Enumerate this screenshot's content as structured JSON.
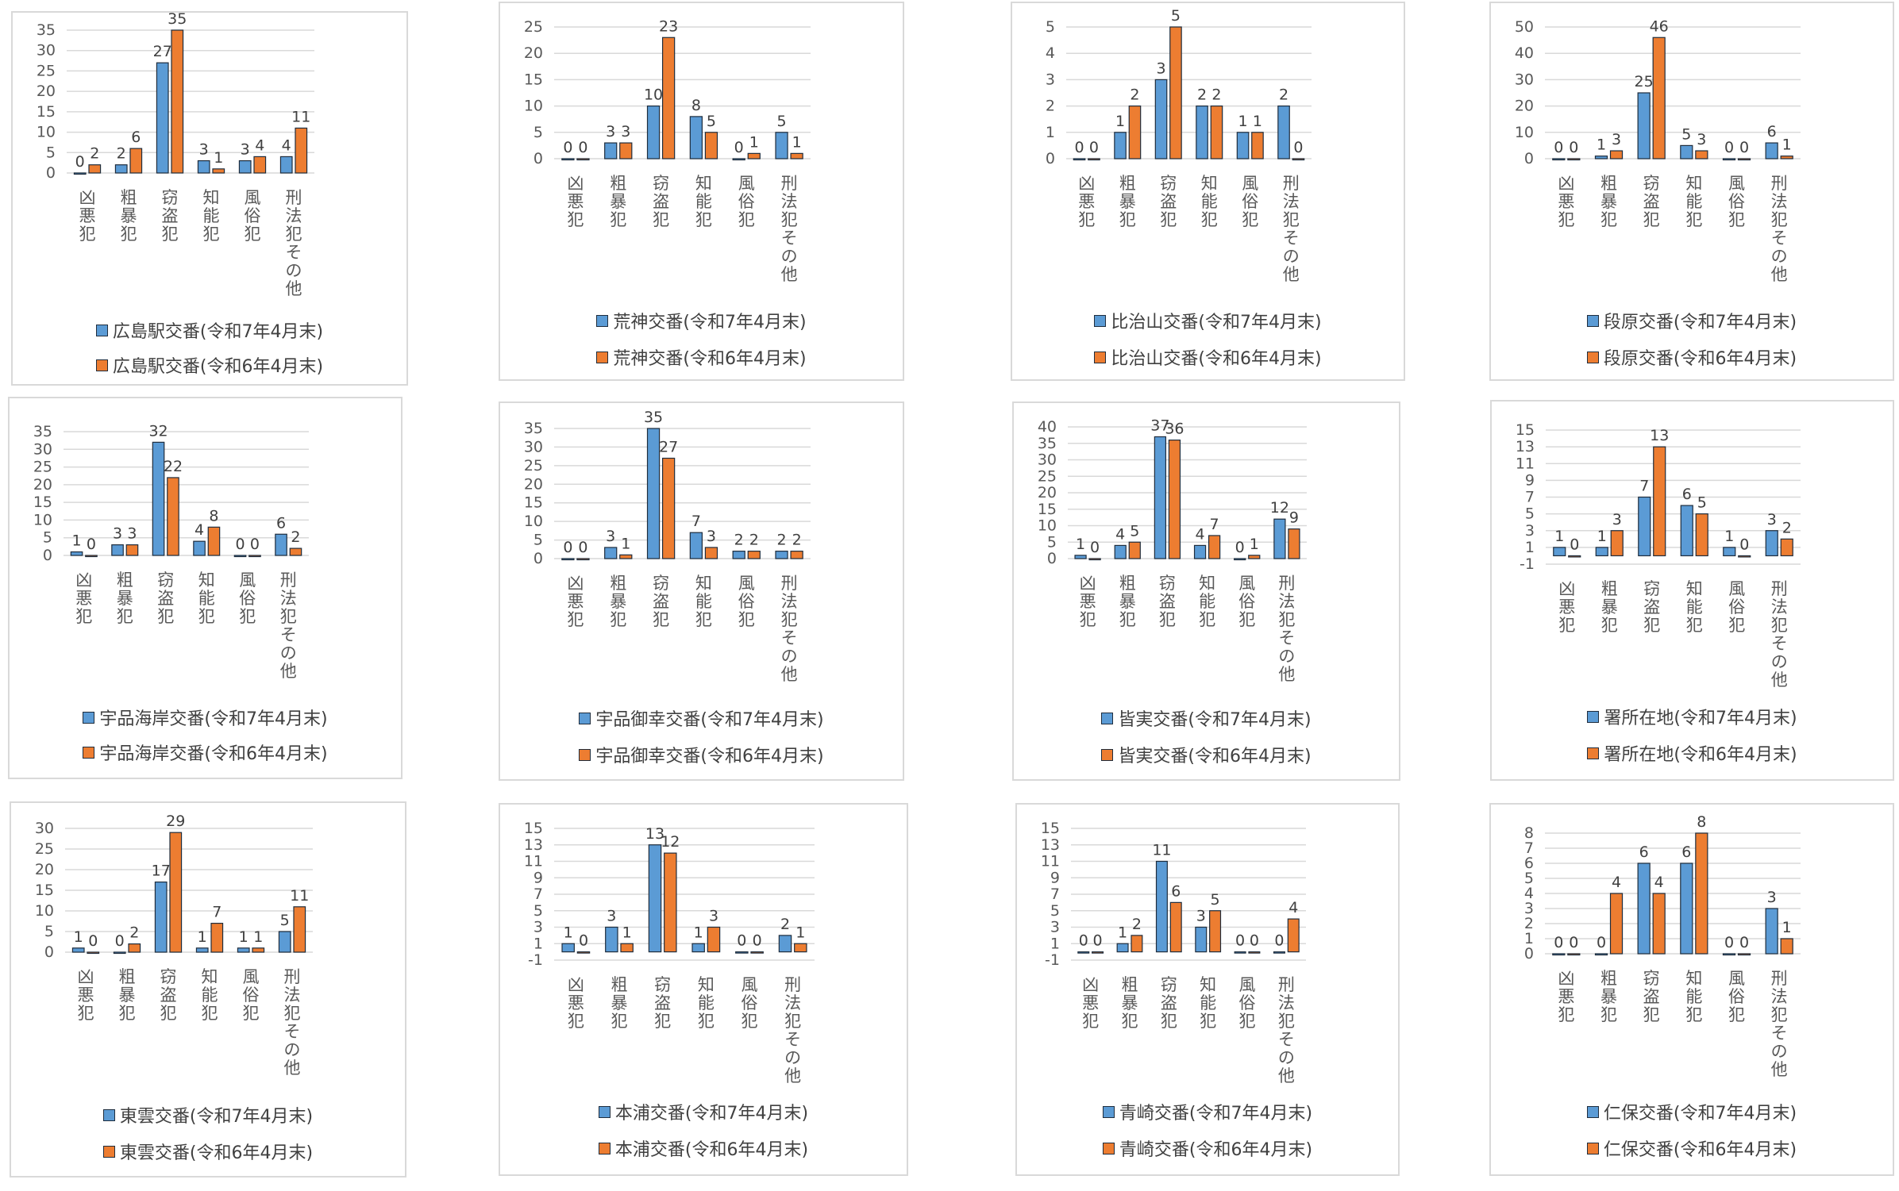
{
  "colors": {
    "series1": "#5b9bd5",
    "series2": "#ed7d31",
    "grid": "#d9d9d9",
    "border": "#d9d9d9"
  },
  "chart_data": [
    {
      "type": "bar",
      "categories": [
        "凶悪犯",
        "粗暴犯",
        "窃盗犯",
        "知能犯",
        "風俗犯",
        "刑法犯その他"
      ],
      "ylim": [
        0,
        35
      ],
      "yticks": [
        0,
        5,
        10,
        15,
        20,
        25,
        30,
        35
      ],
      "series": [
        {
          "name": "広島駅交番(令和7年4月末)",
          "values": [
            0,
            2,
            27,
            3,
            3,
            4
          ]
        },
        {
          "name": "広島駅交番(令和6年4月末)",
          "values": [
            2,
            6,
            35,
            1,
            4,
            11
          ]
        }
      ]
    },
    {
      "type": "bar",
      "categories": [
        "凶悪犯",
        "粗暴犯",
        "窃盗犯",
        "知能犯",
        "風俗犯",
        "刑法犯その他"
      ],
      "ylim": [
        0,
        25
      ],
      "yticks": [
        0,
        5,
        10,
        15,
        20,
        25
      ],
      "series": [
        {
          "name": "荒神交番(令和7年4月末)",
          "values": [
            0,
            3,
            10,
            8,
            0,
            5
          ]
        },
        {
          "name": "荒神交番(令和6年4月末)",
          "values": [
            0,
            3,
            23,
            5,
            1,
            1
          ]
        }
      ]
    },
    {
      "type": "bar",
      "categories": [
        "凶悪犯",
        "粗暴犯",
        "窃盗犯",
        "知能犯",
        "風俗犯",
        "刑法犯その他"
      ],
      "ylim": [
        0,
        5
      ],
      "yticks": [
        0,
        1,
        2,
        3,
        4,
        5
      ],
      "series": [
        {
          "name": "比治山交番(令和7年4月末)",
          "values": [
            0,
            1,
            3,
            2,
            1,
            2
          ]
        },
        {
          "name": "比治山交番(令和6年4月末)",
          "values": [
            0,
            2,
            5,
            2,
            1,
            0
          ]
        }
      ]
    },
    {
      "type": "bar",
      "categories": [
        "凶悪犯",
        "粗暴犯",
        "窃盗犯",
        "知能犯",
        "風俗犯",
        "刑法犯その他"
      ],
      "ylim": [
        0,
        50
      ],
      "yticks": [
        0,
        10,
        20,
        30,
        40,
        50
      ],
      "series": [
        {
          "name": "段原交番(令和7年4月末)",
          "values": [
            0,
            1,
            25,
            5,
            0,
            6
          ]
        },
        {
          "name": "段原交番(令和6年4月末)",
          "values": [
            0,
            3,
            46,
            3,
            0,
            1
          ]
        }
      ]
    },
    {
      "type": "bar",
      "categories": [
        "凶悪犯",
        "粗暴犯",
        "窃盗犯",
        "知能犯",
        "風俗犯",
        "刑法犯その他"
      ],
      "ylim": [
        0,
        35
      ],
      "yticks": [
        0,
        5,
        10,
        15,
        20,
        25,
        30,
        35
      ],
      "series": [
        {
          "name": "宇品海岸交番(令和7年4月末)",
          "values": [
            1,
            3,
            32,
            4,
            0,
            6
          ]
        },
        {
          "name": "宇品海岸交番(令和6年4月末)",
          "values": [
            0,
            3,
            22,
            8,
            0,
            2
          ]
        }
      ]
    },
    {
      "type": "bar",
      "categories": [
        "凶悪犯",
        "粗暴犯",
        "窃盗犯",
        "知能犯",
        "風俗犯",
        "刑法犯その他"
      ],
      "ylim": [
        0,
        35
      ],
      "yticks": [
        0,
        5,
        10,
        15,
        20,
        25,
        30,
        35
      ],
      "series": [
        {
          "name": "宇品御幸交番(令和7年4月末)",
          "values": [
            0,
            3,
            35,
            7,
            2,
            2
          ]
        },
        {
          "name": "宇品御幸交番(令和6年4月末)",
          "values": [
            0,
            1,
            27,
            3,
            2,
            2
          ]
        }
      ]
    },
    {
      "type": "bar",
      "categories": [
        "凶悪犯",
        "粗暴犯",
        "窃盗犯",
        "知能犯",
        "風俗犯",
        "刑法犯その他"
      ],
      "ylim": [
        0,
        40
      ],
      "yticks": [
        0,
        5,
        10,
        15,
        20,
        25,
        30,
        35,
        40
      ],
      "series": [
        {
          "name": "皆実交番(令和7年4月末)",
          "values": [
            1,
            4,
            37,
            4,
            0,
            12
          ]
        },
        {
          "name": "皆実交番(令和6年4月末)",
          "values": [
            0,
            5,
            36,
            7,
            1,
            9
          ]
        }
      ]
    },
    {
      "type": "bar",
      "categories": [
        "凶悪犯",
        "粗暴犯",
        "窃盗犯",
        "知能犯",
        "風俗犯",
        "刑法犯その他"
      ],
      "ylim": [
        -1,
        15
      ],
      "yticks": [
        -1,
        1,
        3,
        5,
        7,
        9,
        11,
        13,
        15
      ],
      "series": [
        {
          "name": "署所在地(令和7年4月末)",
          "values": [
            1,
            1,
            7,
            6,
            1,
            3
          ]
        },
        {
          "name": "署所在地(令和6年4月末)",
          "values": [
            0,
            3,
            13,
            5,
            0,
            2
          ]
        }
      ]
    },
    {
      "type": "bar",
      "categories": [
        "凶悪犯",
        "粗暴犯",
        "窃盗犯",
        "知能犯",
        "風俗犯",
        "刑法犯その他"
      ],
      "ylim": [
        0,
        30
      ],
      "yticks": [
        0,
        5,
        10,
        15,
        20,
        25,
        30
      ],
      "series": [
        {
          "name": "東雲交番(令和7年4月末)",
          "values": [
            1,
            0,
            17,
            1,
            1,
            5
          ]
        },
        {
          "name": "東雲交番(令和6年4月末)",
          "values": [
            0,
            2,
            29,
            7,
            1,
            11
          ]
        }
      ]
    },
    {
      "type": "bar",
      "categories": [
        "凶悪犯",
        "粗暴犯",
        "窃盗犯",
        "知能犯",
        "風俗犯",
        "刑法犯その他"
      ],
      "ylim": [
        -1,
        15
      ],
      "yticks": [
        -1,
        1,
        3,
        5,
        7,
        9,
        11,
        13,
        15
      ],
      "series": [
        {
          "name": "本浦交番(令和7年4月末)",
          "values": [
            1,
            3,
            13,
            1,
            0,
            2
          ]
        },
        {
          "name": "本浦交番(令和6年4月末)",
          "values": [
            0,
            1,
            12,
            3,
            0,
            1
          ]
        }
      ]
    },
    {
      "type": "bar",
      "categories": [
        "凶悪犯",
        "粗暴犯",
        "窃盗犯",
        "知能犯",
        "風俗犯",
        "刑法犯その他"
      ],
      "ylim": [
        -1,
        15
      ],
      "yticks": [
        -1,
        1,
        3,
        5,
        7,
        9,
        11,
        13,
        15
      ],
      "series": [
        {
          "name": "青崎交番(令和7年4月末)",
          "values": [
            0,
            1,
            11,
            3,
            0,
            0
          ]
        },
        {
          "name": "青崎交番(令和6年4月末)",
          "values": [
            0,
            2,
            6,
            5,
            0,
            4
          ]
        }
      ]
    },
    {
      "type": "bar",
      "categories": [
        "凶悪犯",
        "粗暴犯",
        "窃盗犯",
        "知能犯",
        "風俗犯",
        "刑法犯その他"
      ],
      "ylim": [
        0,
        8
      ],
      "yticks": [
        0,
        1,
        2,
        3,
        4,
        5,
        6,
        7,
        8
      ],
      "series": [
        {
          "name": "仁保交番(令和7年4月末)",
          "values": [
            0,
            0,
            6,
            6,
            0,
            3
          ]
        },
        {
          "name": "仁保交番(令和6年4月末)",
          "values": [
            0,
            4,
            4,
            8,
            0,
            1
          ]
        }
      ]
    }
  ]
}
